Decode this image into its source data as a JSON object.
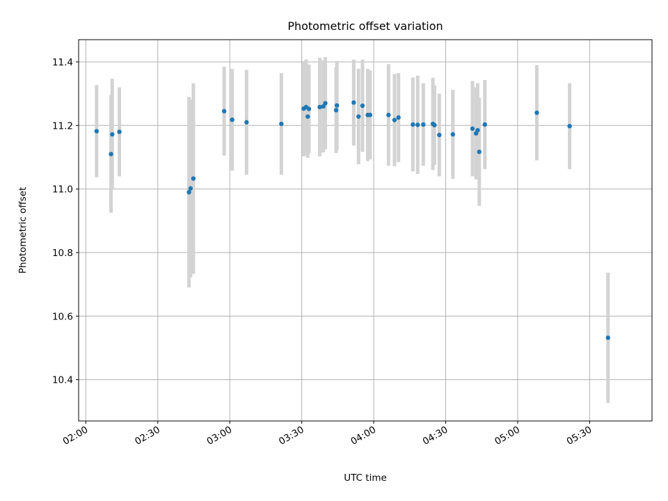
{
  "chart_data": {
    "type": "scatter",
    "title": "Photometric offset variation",
    "xlabel": "UTC time",
    "ylabel": "Photometric offset",
    "x_ticks": [
      "02:00",
      "02:30",
      "03:00",
      "03:30",
      "04:00",
      "04:30",
      "05:00",
      "05:30"
    ],
    "y_ticks": [
      10.4,
      10.6,
      10.8,
      11.0,
      11.2,
      11.4
    ],
    "xlim": [
      "01:57",
      "05:56"
    ],
    "ylim": [
      10.27,
      11.47
    ],
    "grid": true,
    "colors": {
      "points": "#1f77b4",
      "error_bars": "#d3d3d3"
    },
    "series": [
      {
        "x": [
          "02:04:30",
          "02:10:30",
          "02:11:00",
          "02:14:00",
          "02:43:00",
          "02:43:40",
          "02:44:50",
          "02:57:40",
          "03:01:00",
          "03:07:00",
          "03:21:30",
          "03:30:50",
          "03:31:50",
          "03:32:30",
          "03:33:00",
          "03:37:30",
          "03:39:00",
          "03:39:50",
          "03:44:20",
          "03:44:40",
          "03:51:40",
          "03:53:40",
          "03:55:20",
          "03:57:30",
          "03:58:30",
          "04:06:10",
          "04:08:40",
          "04:10:20",
          "04:16:20",
          "04:18:20",
          "04:20:40",
          "04:24:40",
          "04:25:20",
          "04:27:20",
          "04:33:00",
          "04:41:10",
          "04:42:40",
          "04:43:20",
          "04:44:00",
          "04:46:20",
          "05:08:00",
          "05:21:40",
          "05:37:40"
        ],
        "y": [
          11.182,
          11.11,
          11.172,
          11.18,
          10.99,
          11.002,
          11.033,
          11.245,
          11.218,
          11.21,
          11.205,
          11.253,
          11.258,
          11.228,
          11.252,
          11.258,
          11.26,
          11.27,
          11.248,
          11.263,
          11.272,
          11.228,
          11.262,
          11.233,
          11.233,
          11.233,
          11.217,
          11.225,
          11.203,
          11.202,
          11.203,
          11.205,
          11.201,
          11.17,
          11.172,
          11.19,
          11.175,
          11.185,
          11.117,
          11.203,
          11.24,
          11.198,
          10.532
        ],
        "yerr": [
          0.145,
          0.185,
          0.175,
          0.14,
          0.3,
          0.28,
          0.3,
          0.14,
          0.16,
          0.165,
          0.16,
          0.15,
          0.15,
          0.13,
          0.14,
          0.155,
          0.145,
          0.145,
          0.135,
          0.14,
          0.135,
          0.15,
          0.145,
          0.145,
          0.14,
          0.16,
          0.145,
          0.14,
          0.148,
          0.155,
          0.13,
          0.145,
          0.125,
          0.13,
          0.14,
          0.15,
          0.145,
          0.148,
          0.17,
          0.14,
          0.15,
          0.135,
          0.205
        ]
      }
    ]
  }
}
